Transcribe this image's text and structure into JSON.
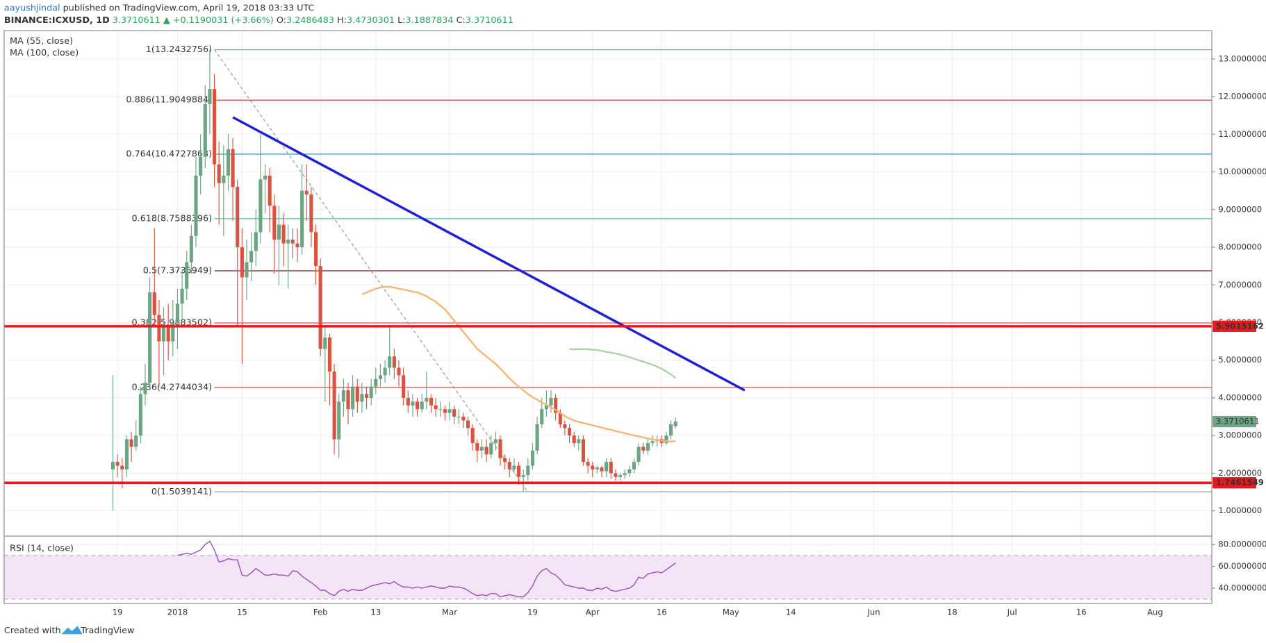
{
  "header": {
    "author": "aayushjindal",
    "published": " published on TradingView.com, April 19, 2018 03:33 UTC",
    "symbol": "BINANCE:ICXUSD, 1D",
    "last": "3.3710611",
    "change": "▲ +0.1190031 (+3.66%)",
    "ohlc": [
      {
        "label": "O:",
        "value": "3.2486483"
      },
      {
        "label": "H:",
        "value": "3.4730301"
      },
      {
        "label": "L:",
        "value": "3.1887834"
      },
      {
        "label": "C:",
        "value": "3.3710611"
      }
    ]
  },
  "footer": {
    "created": "Created with",
    "brand": "TradingView"
  },
  "chart_data": {
    "type": "candlestick",
    "up_color": "#6ba583",
    "down_color": "#d75442",
    "grid": true,
    "xlim": [
      -23.6,
      238.3
    ],
    "xticks": [
      {
        "value": 1,
        "label": "19"
      },
      {
        "value": 14,
        "label": "2018"
      },
      {
        "value": 28,
        "label": "15"
      },
      {
        "value": 45,
        "label": "Feb"
      },
      {
        "value": 57,
        "label": "13"
      },
      {
        "value": 73,
        "label": "Mar"
      },
      {
        "value": 91,
        "label": "19"
      },
      {
        "value": 104,
        "label": "Apr"
      },
      {
        "value": 119,
        "label": "16"
      },
      {
        "value": 134,
        "label": "May"
      },
      {
        "value": 147,
        "label": "14"
      },
      {
        "value": 165,
        "label": "Jun"
      },
      {
        "value": 182,
        "label": "18"
      },
      {
        "value": 195,
        "label": "Jul"
      },
      {
        "value": 210,
        "label": "16"
      },
      {
        "value": 226,
        "label": "Aug"
      }
    ],
    "ylim": [
      0.34,
      13.75
    ],
    "yticks": [
      {
        "value": 1,
        "label": "1.0000000"
      },
      {
        "value": 2,
        "label": "2.0000000"
      },
      {
        "value": 3,
        "label": "3.0000000"
      },
      {
        "value": 4,
        "label": "4.0000000"
      },
      {
        "value": 5,
        "label": "5.0000000"
      },
      {
        "value": 6,
        "label": "6.0000000"
      },
      {
        "value": 7,
        "label": "7.0000000"
      },
      {
        "value": 8,
        "label": "8.0000000"
      },
      {
        "value": 9,
        "label": "9.0000000"
      },
      {
        "value": 10,
        "label": "10.0000000"
      },
      {
        "value": 11,
        "label": "11.0000000"
      },
      {
        "value": 12,
        "label": "12.0000000"
      },
      {
        "value": 13,
        "label": "13.0000000"
      }
    ],
    "ohlc": [
      [
        2.1,
        4.6,
        1.0,
        2.3
      ],
      [
        2.3,
        2.5,
        1.9,
        2.2
      ],
      [
        2.2,
        2.4,
        1.6,
        2.1
      ],
      [
        2.1,
        3.0,
        1.9,
        2.9
      ],
      [
        2.9,
        3.1,
        2.3,
        2.7
      ],
      [
        2.7,
        3.4,
        2.6,
        3.0
      ],
      [
        3.0,
        4.3,
        2.8,
        4.1
      ],
      [
        4.1,
        4.9,
        3.8,
        4.4
      ],
      [
        4.4,
        7.2,
        4.2,
        6.8
      ],
      [
        6.8,
        8.5,
        5.9,
        6.2
      ],
      [
        6.2,
        6.6,
        4.3,
        5.5
      ],
      [
        5.5,
        6.4,
        4.6,
        5.9
      ],
      [
        5.9,
        6.5,
        5.0,
        5.5
      ],
      [
        5.5,
        6.6,
        5.1,
        6.0
      ],
      [
        6.0,
        6.9,
        5.3,
        6.5
      ],
      [
        6.5,
        7.4,
        6.1,
        6.9
      ],
      [
        6.9,
        7.9,
        6.6,
        7.6
      ],
      [
        7.6,
        8.6,
        7.3,
        8.3
      ],
      [
        8.3,
        10.4,
        8.0,
        9.9
      ],
      [
        9.9,
        11.0,
        9.4,
        10.4
      ],
      [
        10.4,
        12.3,
        10.1,
        11.8
      ],
      [
        11.8,
        13.2432756,
        11.0,
        12.2
      ],
      [
        12.2,
        12.6,
        9.6,
        10.2
      ],
      [
        10.2,
        10.8,
        8.6,
        9.7
      ],
      [
        9.7,
        10.7,
        8.3,
        9.9
      ],
      [
        9.9,
        11.0,
        9.5,
        10.6
      ],
      [
        10.6,
        10.9,
        8.7,
        9.6
      ],
      [
        9.6,
        9.8,
        5.9,
        8.0
      ],
      [
        8.0,
        8.5,
        4.9,
        7.2
      ],
      [
        7.2,
        8.2,
        6.6,
        7.6
      ],
      [
        7.6,
        8.4,
        7.1,
        7.9
      ],
      [
        7.9,
        9.0,
        7.5,
        8.4
      ],
      [
        8.4,
        11.0,
        8.1,
        9.8
      ],
      [
        9.8,
        10.2,
        8.9,
        9.9
      ],
      [
        9.9,
        10.1,
        8.4,
        9.1
      ],
      [
        9.1,
        9.4,
        7.3,
        8.2
      ],
      [
        8.2,
        9.1,
        7.0,
        8.6
      ],
      [
        8.6,
        8.9,
        7.5,
        8.1
      ],
      [
        8.1,
        8.6,
        6.9,
        8.2
      ],
      [
        8.2,
        8.5,
        7.7,
        8.1
      ],
      [
        8.1,
        8.5,
        7.6,
        8.0
      ],
      [
        8.0,
        10.2,
        7.8,
        9.5
      ],
      [
        9.5,
        10.2,
        8.7,
        9.4
      ],
      [
        9.4,
        9.6,
        8.0,
        8.4
      ],
      [
        8.4,
        8.6,
        7.0,
        7.5
      ],
      [
        7.5,
        7.7,
        5.1,
        5.3
      ],
      [
        5.3,
        5.9,
        3.9,
        5.6
      ],
      [
        5.6,
        5.7,
        3.8,
        4.7
      ],
      [
        4.7,
        4.9,
        2.5,
        2.9
      ],
      [
        2.9,
        4.1,
        2.4,
        3.9
      ],
      [
        3.9,
        4.5,
        3.5,
        4.2
      ],
      [
        4.2,
        4.4,
        3.3,
        3.7
      ],
      [
        3.7,
        4.6,
        3.5,
        4.3
      ],
      [
        4.3,
        4.5,
        3.6,
        3.9
      ],
      [
        3.9,
        4.4,
        3.6,
        4.1
      ],
      [
        4.1,
        4.3,
        3.7,
        4.0
      ],
      [
        4.0,
        4.5,
        3.8,
        4.3
      ],
      [
        4.3,
        4.8,
        4.1,
        4.5
      ],
      [
        4.5,
        4.9,
        4.3,
        4.6
      ],
      [
        4.6,
        5.0,
        4.4,
        4.8
      ],
      [
        4.8,
        5.9,
        4.6,
        5.1
      ],
      [
        5.1,
        5.3,
        4.5,
        4.8
      ],
      [
        4.8,
        5.0,
        4.3,
        4.6
      ],
      [
        4.6,
        4.8,
        3.8,
        4.0
      ],
      [
        4.0,
        4.2,
        3.6,
        3.8
      ],
      [
        3.8,
        4.1,
        3.5,
        3.9
      ],
      [
        3.9,
        4.0,
        3.5,
        3.7
      ],
      [
        3.7,
        4.1,
        3.6,
        3.9
      ],
      [
        3.9,
        4.7,
        3.7,
        4.0
      ],
      [
        4.0,
        4.1,
        3.6,
        3.8
      ],
      [
        3.8,
        4.0,
        3.5,
        3.7
      ],
      [
        3.7,
        3.9,
        3.5,
        3.7
      ],
      [
        3.7,
        3.8,
        3.4,
        3.6
      ],
      [
        3.6,
        3.9,
        3.4,
        3.7
      ],
      [
        3.7,
        3.8,
        3.3,
        3.5
      ],
      [
        3.5,
        3.7,
        3.3,
        3.5
      ],
      [
        3.5,
        3.6,
        3.2,
        3.4
      ],
      [
        3.4,
        3.5,
        3.0,
        3.2
      ],
      [
        3.2,
        3.3,
        2.6,
        2.8
      ],
      [
        2.8,
        2.9,
        2.3,
        2.6
      ],
      [
        2.6,
        2.9,
        2.4,
        2.7
      ],
      [
        2.7,
        2.9,
        2.3,
        2.5
      ],
      [
        2.5,
        3.0,
        2.4,
        2.8
      ],
      [
        2.8,
        3.1,
        2.6,
        2.9
      ],
      [
        2.9,
        3.0,
        2.2,
        2.4
      ],
      [
        2.4,
        2.5,
        2.1,
        2.3
      ],
      [
        2.3,
        2.4,
        1.9,
        2.1
      ],
      [
        2.1,
        2.4,
        2.0,
        2.2
      ],
      [
        2.2,
        2.3,
        1.7,
        1.9
      ],
      [
        1.9,
        2.1,
        1.5039141,
        1.95
      ],
      [
        1.95,
        2.4,
        1.8,
        2.2
      ],
      [
        2.2,
        2.8,
        2.1,
        2.6
      ],
      [
        2.6,
        3.5,
        2.5,
        3.3
      ],
      [
        3.3,
        4.0,
        3.2,
        3.7
      ],
      [
        3.7,
        4.2,
        3.5,
        3.8
      ],
      [
        3.8,
        4.2,
        3.6,
        4.0
      ],
      [
        4.0,
        4.1,
        3.4,
        3.6
      ],
      [
        3.6,
        3.7,
        3.2,
        3.3
      ],
      [
        3.3,
        3.4,
        3.0,
        3.2
      ],
      [
        3.2,
        3.3,
        2.8,
        3.0
      ],
      [
        3.0,
        3.1,
        2.7,
        2.8
      ],
      [
        2.8,
        3.0,
        2.6,
        2.9
      ],
      [
        2.9,
        3.0,
        2.2,
        2.3
      ],
      [
        2.3,
        2.4,
        2.0,
        2.2
      ],
      [
        2.2,
        2.3,
        1.9,
        2.1
      ],
      [
        2.1,
        2.2,
        2.0,
        2.15
      ],
      [
        2.15,
        2.2,
        1.9,
        2.05
      ],
      [
        2.05,
        2.4,
        1.9,
        2.3
      ],
      [
        2.3,
        2.4,
        1.85,
        2.0
      ],
      [
        2.0,
        2.1,
        1.8,
        1.9
      ],
      [
        1.9,
        2.0,
        1.8,
        1.95
      ],
      [
        1.95,
        2.1,
        1.85,
        2.0
      ],
      [
        2.0,
        2.2,
        1.9,
        2.1
      ],
      [
        2.1,
        2.4,
        2.0,
        2.3
      ],
      [
        2.3,
        2.8,
        2.2,
        2.7
      ],
      [
        2.7,
        2.8,
        2.5,
        2.6
      ],
      [
        2.6,
        2.9,
        2.5,
        2.8
      ],
      [
        2.8,
        3.0,
        2.7,
        2.85
      ],
      [
        2.85,
        3.0,
        2.7,
        2.9
      ],
      [
        2.9,
        3.0,
        2.7,
        2.8
      ],
      [
        2.8,
        3.1,
        2.75,
        3.0
      ],
      [
        3.0,
        3.4,
        2.9,
        3.3
      ],
      [
        3.2486483,
        3.4730301,
        3.1887834,
        3.3710611
      ]
    ],
    "series": [
      {
        "name": "MA (55, close)",
        "color": "#f7b46e",
        "values": [
          null,
          null,
          null,
          null,
          null,
          null,
          null,
          null,
          null,
          null,
          null,
          null,
          null,
          null,
          null,
          null,
          null,
          null,
          null,
          null,
          null,
          null,
          null,
          null,
          null,
          null,
          null,
          null,
          null,
          null,
          null,
          null,
          null,
          null,
          null,
          null,
          null,
          null,
          null,
          null,
          null,
          null,
          null,
          null,
          null,
          null,
          null,
          null,
          null,
          null,
          null,
          null,
          null,
          null,
          6.75,
          6.8,
          6.85,
          6.9,
          6.93,
          6.95,
          6.95,
          6.93,
          6.9,
          6.88,
          6.85,
          6.82,
          6.8,
          6.75,
          6.7,
          6.62,
          6.55,
          6.45,
          6.35,
          6.2,
          6.05,
          5.9,
          5.75,
          5.6,
          5.45,
          5.3,
          5.2,
          5.1,
          5.0,
          4.9,
          4.78,
          4.65,
          4.52,
          4.4,
          4.3,
          4.2,
          4.1,
          4.02,
          3.95,
          3.88,
          3.82,
          3.75,
          3.68,
          3.6,
          3.52,
          3.45,
          3.4,
          3.36,
          3.33,
          3.3,
          3.27,
          3.24,
          3.21,
          3.18,
          3.15,
          3.12,
          3.09,
          3.06,
          3.03,
          3.0,
          2.98,
          2.95,
          2.92,
          2.9,
          2.88,
          2.86,
          2.85,
          2.84,
          2.85
        ]
      },
      {
        "name": "MA (100, close)",
        "color": "#a8d5a2",
        "values": [
          null,
          null,
          null,
          null,
          null,
          null,
          null,
          null,
          null,
          null,
          null,
          null,
          null,
          null,
          null,
          null,
          null,
          null,
          null,
          null,
          null,
          null,
          null,
          null,
          null,
          null,
          null,
          null,
          null,
          null,
          null,
          null,
          null,
          null,
          null,
          null,
          null,
          null,
          null,
          null,
          null,
          null,
          null,
          null,
          null,
          null,
          null,
          null,
          null,
          null,
          null,
          null,
          null,
          null,
          null,
          null,
          null,
          null,
          null,
          null,
          null,
          null,
          null,
          null,
          null,
          null,
          null,
          null,
          null,
          null,
          null,
          null,
          null,
          null,
          null,
          null,
          null,
          null,
          null,
          null,
          null,
          null,
          null,
          null,
          null,
          null,
          null,
          null,
          null,
          null,
          null,
          null,
          null,
          null,
          null,
          null,
          null,
          null,
          null,
          5.29,
          5.29,
          5.29,
          5.29,
          5.29,
          5.28,
          5.27,
          5.25,
          5.22,
          5.2,
          5.18,
          5.15,
          5.12,
          5.08,
          5.04,
          5.0,
          4.96,
          4.92,
          4.88,
          4.83,
          4.77,
          4.7,
          4.62,
          4.53
        ]
      }
    ],
    "fib": {
      "start": 22,
      "levels": [
        {
          "label": "1(13.2432756)",
          "value": 13.2432756,
          "color": "#5aafd6"
        },
        {
          "label": "0.886(11.9049884)",
          "value": 11.9049884,
          "color": "#c62828"
        },
        {
          "label": "0.764(10.4727863)",
          "value": 10.4727863,
          "color": "#1e8bc3"
        },
        {
          "label": "0.618(8.7588396)",
          "value": 8.7588396,
          "color": "#4cbf96"
        },
        {
          "label": "0.5(7.3735949)",
          "value": 7.3735949,
          "color": "#7b1c1c"
        },
        {
          "label": "0.382(5.9883502)",
          "value": 5.9883502,
          "color": "#e04848"
        },
        {
          "label": "0.236(4.2744034)",
          "value": 4.2744034,
          "color": "#d33a3a"
        },
        {
          "label": "0(1.5039141)",
          "value": 1.5039141,
          "color": "#888888"
        }
      ]
    },
    "fib_diagonal": {
      "color": "#999999",
      "points": [
        [
          22,
          13.2432756
        ],
        [
          90,
          1.5039141
        ]
      ]
    },
    "trendline": {
      "color": "#1f1fd6",
      "points": [
        [
          26,
          11.45
        ],
        [
          137,
          4.2
        ]
      ]
    },
    "horizontal_levels": {
      "color": "#e8191e",
      "values": [
        5.9015162,
        1.7461549
      ]
    },
    "rsi": {
      "name": "RSI (14, close)",
      "color": "#9a4fb0",
      "ylim": [
        25.9,
        87.4
      ],
      "bands": [
        30,
        70
      ],
      "yticks": [
        {
          "value": 80,
          "label": "80.0000000"
        },
        {
          "value": 60,
          "label": "60.0000000"
        },
        {
          "value": 40,
          "label": "40.0000000"
        }
      ],
      "values": [
        null,
        null,
        null,
        null,
        null,
        null,
        null,
        null,
        null,
        null,
        null,
        null,
        null,
        null,
        70,
        71,
        72,
        71,
        73,
        75,
        80,
        83,
        75,
        64,
        65,
        67,
        66,
        66,
        52,
        51,
        54,
        58,
        55,
        52,
        52,
        53,
        52,
        52,
        51,
        56,
        55,
        51,
        48,
        45,
        42,
        38,
        38,
        35,
        33,
        37,
        39,
        37,
        39,
        38,
        38,
        40,
        42,
        43,
        44,
        45,
        44,
        46,
        43,
        41,
        41,
        40,
        41,
        40,
        41,
        42,
        41,
        40,
        40,
        42,
        41,
        41,
        40,
        38,
        35,
        33,
        34,
        33,
        35,
        35,
        32,
        33,
        34,
        33,
        32,
        32,
        36,
        42,
        51,
        56,
        58,
        54,
        52,
        48,
        43,
        42,
        41,
        40,
        40,
        38,
        38,
        40,
        39,
        41,
        38,
        37,
        38,
        39,
        40,
        43,
        50,
        49,
        53,
        54,
        55,
        54,
        57,
        60,
        63
      ]
    }
  }
}
